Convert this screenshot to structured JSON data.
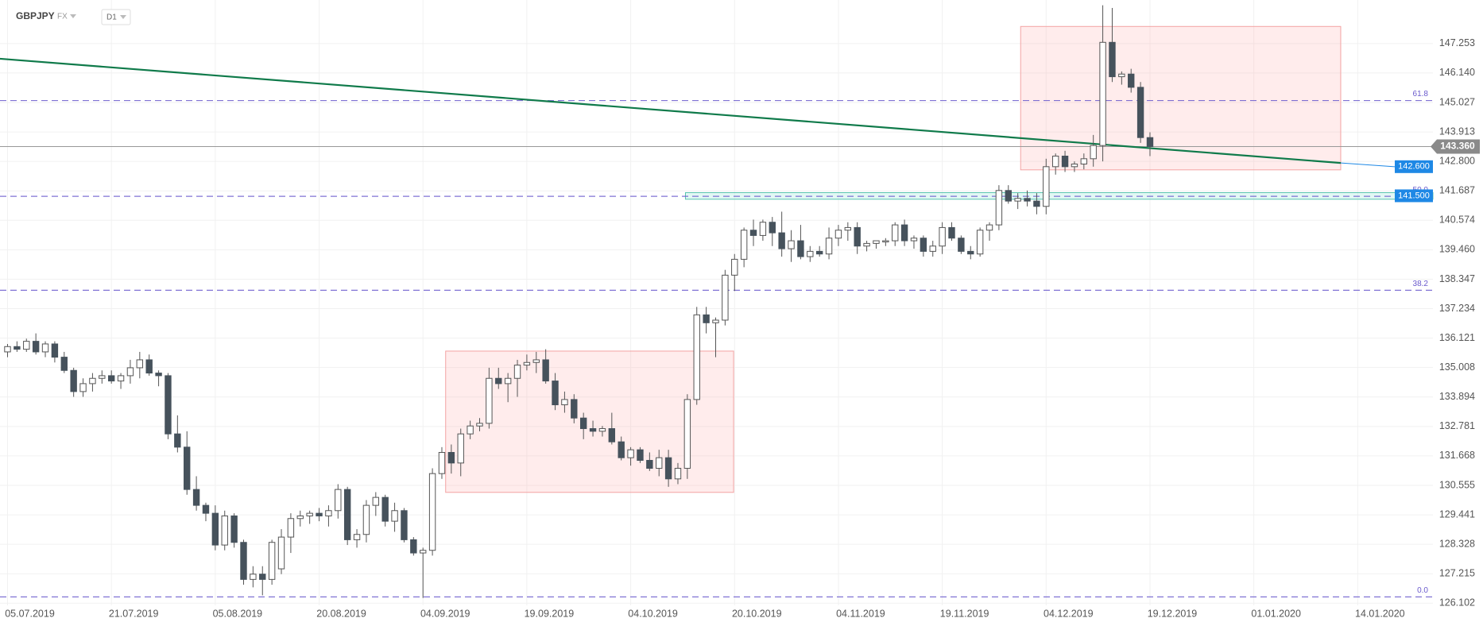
{
  "header": {
    "symbol": "GBPJPY",
    "market": "FX",
    "timeframe": "D1"
  },
  "chart_data": {
    "type": "candlestick",
    "categories": [
      "05.07.2019",
      null,
      null,
      null,
      null,
      null,
      null,
      null,
      null,
      null,
      null,
      "21.07.2019",
      null,
      null,
      null,
      null,
      null,
      null,
      null,
      null,
      null,
      null,
      "05.08.2019",
      null,
      null,
      null,
      null,
      null,
      null,
      null,
      null,
      null,
      null,
      "20.08.2019",
      null,
      null,
      null,
      null,
      null,
      null,
      null,
      null,
      null,
      null,
      "04.09.2019",
      null,
      null,
      null,
      null,
      null,
      null,
      null,
      null,
      null,
      null,
      "19.09.2019",
      null,
      null,
      null,
      null,
      null,
      null,
      null,
      null,
      null,
      null,
      "04.10.2019",
      null,
      null,
      null,
      null,
      null,
      null,
      null,
      null,
      null,
      null,
      "20.10.2019",
      null,
      null,
      null,
      null,
      null,
      null,
      null,
      null,
      null,
      null,
      "04.11.2019",
      null,
      null,
      null,
      null,
      null,
      null,
      null,
      null,
      null,
      null,
      "19.11.2019",
      null,
      null,
      null,
      null,
      null,
      null,
      null,
      null,
      null,
      null,
      "04.12.2019",
      null,
      null,
      null,
      null,
      null,
      null,
      null,
      null,
      null,
      null,
      "19.12.2019",
      null,
      null,
      null,
      null,
      null,
      null,
      null,
      null,
      null,
      null,
      "01.01.2020",
      null,
      null,
      null,
      null,
      null,
      null,
      null,
      null,
      null,
      null,
      "14.01.2020",
      null,
      null
    ],
    "open": [
      135.6,
      135.8,
      135.7,
      136.0,
      135.6,
      135.9,
      135.4,
      134.9,
      134.1,
      134.4,
      134.6,
      134.7,
      134.5,
      134.7,
      135.0,
      135.3,
      134.8,
      134.7,
      132.5,
      132.0,
      130.4,
      129.8,
      129.5,
      128.3,
      129.4,
      128.4,
      127.0,
      127.2,
      127.0,
      127.4,
      128.6,
      129.3,
      129.4,
      129.5,
      129.4,
      129.6,
      130.4,
      128.5,
      128.7,
      129.8,
      130.1,
      129.2,
      129.6,
      128.5,
      128.0,
      128.1,
      131.0,
      131.8,
      131.4,
      132.5,
      132.8,
      132.9,
      134.6,
      134.4,
      134.6,
      135.1,
      135.2,
      135.3,
      134.5,
      133.6,
      133.8,
      133.1,
      132.7,
      132.6,
      132.7,
      132.2,
      131.6,
      131.9,
      131.5,
      131.2,
      131.6,
      130.8,
      131.2,
      133.8,
      137.0,
      136.7,
      136.8,
      138.5,
      139.1,
      140.2,
      140.0,
      140.5,
      140.1,
      139.5,
      139.8,
      139.2,
      139.4,
      139.3,
      139.9,
      140.2,
      140.3,
      139.6,
      139.7,
      139.8,
      139.8,
      140.4,
      139.8,
      139.9,
      139.4,
      139.6,
      140.3,
      139.9,
      139.4,
      139.3,
      140.2,
      140.4,
      141.7,
      141.3,
      141.4,
      141.3,
      141.1,
      142.6,
      143.0,
      142.6,
      142.7,
      142.9,
      143.4,
      147.3,
      146.0,
      146.1,
      145.6,
      143.7,
      null,
      null,
      null,
      null,
      null,
      null,
      null,
      null,
      null,
      null,
      null,
      null,
      null,
      null,
      null,
      null,
      null,
      null,
      null,
      null,
      null,
      null,
      null,
      null
    ],
    "high": [
      135.9,
      136.0,
      136.1,
      136.3,
      136.0,
      136.0,
      135.6,
      135.0,
      134.6,
      134.8,
      134.9,
      134.9,
      134.8,
      135.3,
      135.6,
      135.5,
      134.9,
      134.8,
      133.2,
      132.6,
      130.9,
      129.9,
      129.8,
      129.6,
      129.5,
      128.5,
      127.5,
      127.5,
      128.5,
      128.9,
      129.5,
      129.6,
      129.6,
      129.7,
      129.8,
      130.6,
      130.5,
      128.9,
      130.0,
      130.3,
      130.2,
      129.9,
      129.7,
      128.6,
      128.2,
      131.2,
      132.0,
      132.1,
      132.7,
      133.0,
      133.1,
      135.0,
      135.0,
      134.8,
      135.3,
      135.5,
      135.6,
      135.7,
      134.8,
      134.1,
      134.0,
      133.3,
      133.0,
      132.8,
      133.3,
      132.4,
      132.0,
      132.0,
      131.8,
      131.9,
      131.9,
      131.4,
      134.0,
      137.3,
      137.3,
      136.9,
      138.7,
      139.3,
      140.3,
      140.6,
      140.6,
      140.7,
      140.9,
      140.2,
      140.4,
      139.6,
      139.6,
      140.3,
      140.4,
      140.5,
      140.5,
      139.8,
      139.8,
      139.9,
      140.5,
      140.6,
      140.0,
      140.0,
      139.8,
      140.5,
      140.5,
      140.0,
      139.6,
      140.3,
      140.5,
      141.9,
      141.9,
      141.6,
      141.7,
      141.6,
      142.9,
      143.1,
      143.2,
      142.8,
      143.1,
      143.8,
      148.7,
      148.6,
      146.2,
      146.3,
      145.8,
      143.9,
      null,
      null,
      null,
      null,
      null,
      null,
      null,
      null,
      null,
      null,
      null,
      null,
      null,
      null,
      null,
      null,
      null,
      null,
      null,
      null,
      null,
      null,
      null,
      null
    ],
    "low": [
      135.4,
      135.6,
      135.6,
      135.5,
      135.4,
      135.2,
      134.8,
      133.9,
      133.9,
      134.1,
      134.4,
      134.4,
      134.2,
      134.4,
      134.6,
      134.7,
      134.3,
      132.3,
      131.8,
      130.2,
      129.6,
      129.2,
      128.1,
      128.1,
      128.2,
      126.8,
      126.7,
      126.4,
      126.8,
      127.2,
      128.0,
      129.0,
      129.1,
      129.2,
      129.0,
      129.3,
      128.3,
      128.2,
      128.4,
      129.4,
      129.0,
      128.8,
      128.4,
      127.9,
      126.3,
      127.9,
      130.8,
      131.0,
      130.9,
      132.3,
      132.6,
      132.7,
      134.2,
      133.7,
      133.9,
      134.9,
      134.8,
      134.4,
      133.4,
      133.3,
      132.9,
      132.3,
      132.4,
      132.4,
      132.1,
      131.5,
      131.3,
      131.4,
      131.1,
      130.9,
      130.5,
      130.6,
      130.8,
      133.6,
      136.3,
      135.4,
      136.6,
      137.9,
      138.8,
      139.6,
      139.8,
      139.6,
      139.2,
      139.0,
      139.1,
      139.0,
      139.2,
      139.1,
      139.6,
      139.8,
      139.3,
      139.4,
      139.5,
      139.6,
      139.6,
      139.6,
      139.5,
      139.2,
      139.2,
      139.3,
      139.8,
      139.3,
      139.1,
      139.2,
      139.8,
      140.2,
      141.2,
      141.0,
      141.1,
      140.8,
      140.8,
      142.3,
      142.4,
      142.4,
      142.5,
      142.6,
      142.8,
      145.8,
      145.7,
      145.4,
      143.5,
      143.0,
      null,
      null,
      null,
      null,
      null,
      null,
      null,
      null,
      null,
      null,
      null,
      null,
      null,
      null,
      null,
      null,
      null,
      null,
      null,
      null,
      null,
      null,
      null,
      null
    ],
    "close": [
      135.8,
      135.7,
      136.0,
      135.6,
      135.9,
      135.4,
      134.9,
      134.1,
      134.4,
      134.6,
      134.7,
      134.5,
      134.7,
      135.0,
      135.3,
      134.8,
      134.7,
      132.5,
      132.0,
      130.4,
      129.8,
      129.5,
      128.3,
      129.4,
      128.4,
      127.0,
      127.2,
      127.0,
      128.4,
      128.6,
      129.3,
      129.4,
      129.5,
      129.4,
      129.6,
      130.4,
      128.5,
      128.7,
      129.8,
      130.1,
      129.2,
      129.6,
      128.5,
      128.0,
      128.1,
      131.0,
      131.8,
      131.4,
      132.5,
      132.8,
      132.9,
      134.6,
      134.4,
      134.6,
      135.1,
      135.2,
      135.3,
      134.5,
      133.6,
      133.8,
      133.1,
      132.7,
      132.6,
      132.7,
      132.2,
      131.6,
      131.9,
      131.5,
      131.2,
      131.6,
      130.8,
      131.2,
      133.8,
      137.0,
      136.7,
      136.8,
      138.5,
      139.1,
      140.2,
      140.0,
      140.5,
      140.1,
      139.5,
      139.8,
      139.2,
      139.4,
      139.3,
      139.9,
      140.2,
      140.3,
      139.6,
      139.7,
      139.8,
      139.8,
      140.4,
      139.8,
      139.9,
      139.4,
      139.6,
      140.3,
      139.9,
      139.4,
      139.3,
      140.2,
      140.4,
      141.7,
      141.3,
      141.4,
      141.3,
      141.1,
      142.6,
      143.0,
      142.6,
      142.7,
      142.9,
      143.4,
      147.3,
      146.0,
      146.1,
      145.6,
      143.7,
      143.36,
      null,
      null,
      null,
      null,
      null,
      null,
      null,
      null,
      null,
      null,
      null,
      null,
      null,
      null,
      null,
      null,
      null,
      null,
      null,
      null,
      null,
      null,
      null,
      null
    ],
    "up_color": "#ffffff",
    "down_color": "#46525c",
    "wick_color": "#555555",
    "ylim": [
      126.02,
      148.9
    ],
    "yticks": [
      126.102,
      127.215,
      128.328,
      129.441,
      130.555,
      131.668,
      132.781,
      133.894,
      135.008,
      136.121,
      137.234,
      138.347,
      {
        "value": 139.46,
        "label": "139.460"
      },
      140.574,
      141.687,
      {
        "value": 142.8,
        "label": "142.800"
      },
      143.913,
      145.027,
      {
        "value": 146.14,
        "label": "146.140"
      },
      147.253
    ],
    "grid": true,
    "fib_levels": [
      {
        "value": 145.1,
        "label": "61.8"
      },
      {
        "value": 141.48,
        "label": "50.0"
      },
      {
        "value": 137.93,
        "label": "38.2"
      },
      {
        "value": 126.34,
        "label": "0.0"
      }
    ],
    "fib_color": "#6a5acd",
    "trendline": {
      "start": 146.68,
      "end": 142.74,
      "color": "#0f7a4a"
    },
    "zones": [
      {
        "top": 135.63,
        "bottom": 130.29
      },
      {
        "top": 147.9,
        "bottom": 142.48
      }
    ],
    "support_zone": {
      "top": 141.62,
      "bottom": 141.37
    },
    "price_labels": [
      {
        "value": 142.6,
        "label": "142.600"
      },
      {
        "value": 141.5,
        "label": "141.500"
      }
    ],
    "last_price": {
      "value": 143.36,
      "label": "143.360"
    }
  }
}
